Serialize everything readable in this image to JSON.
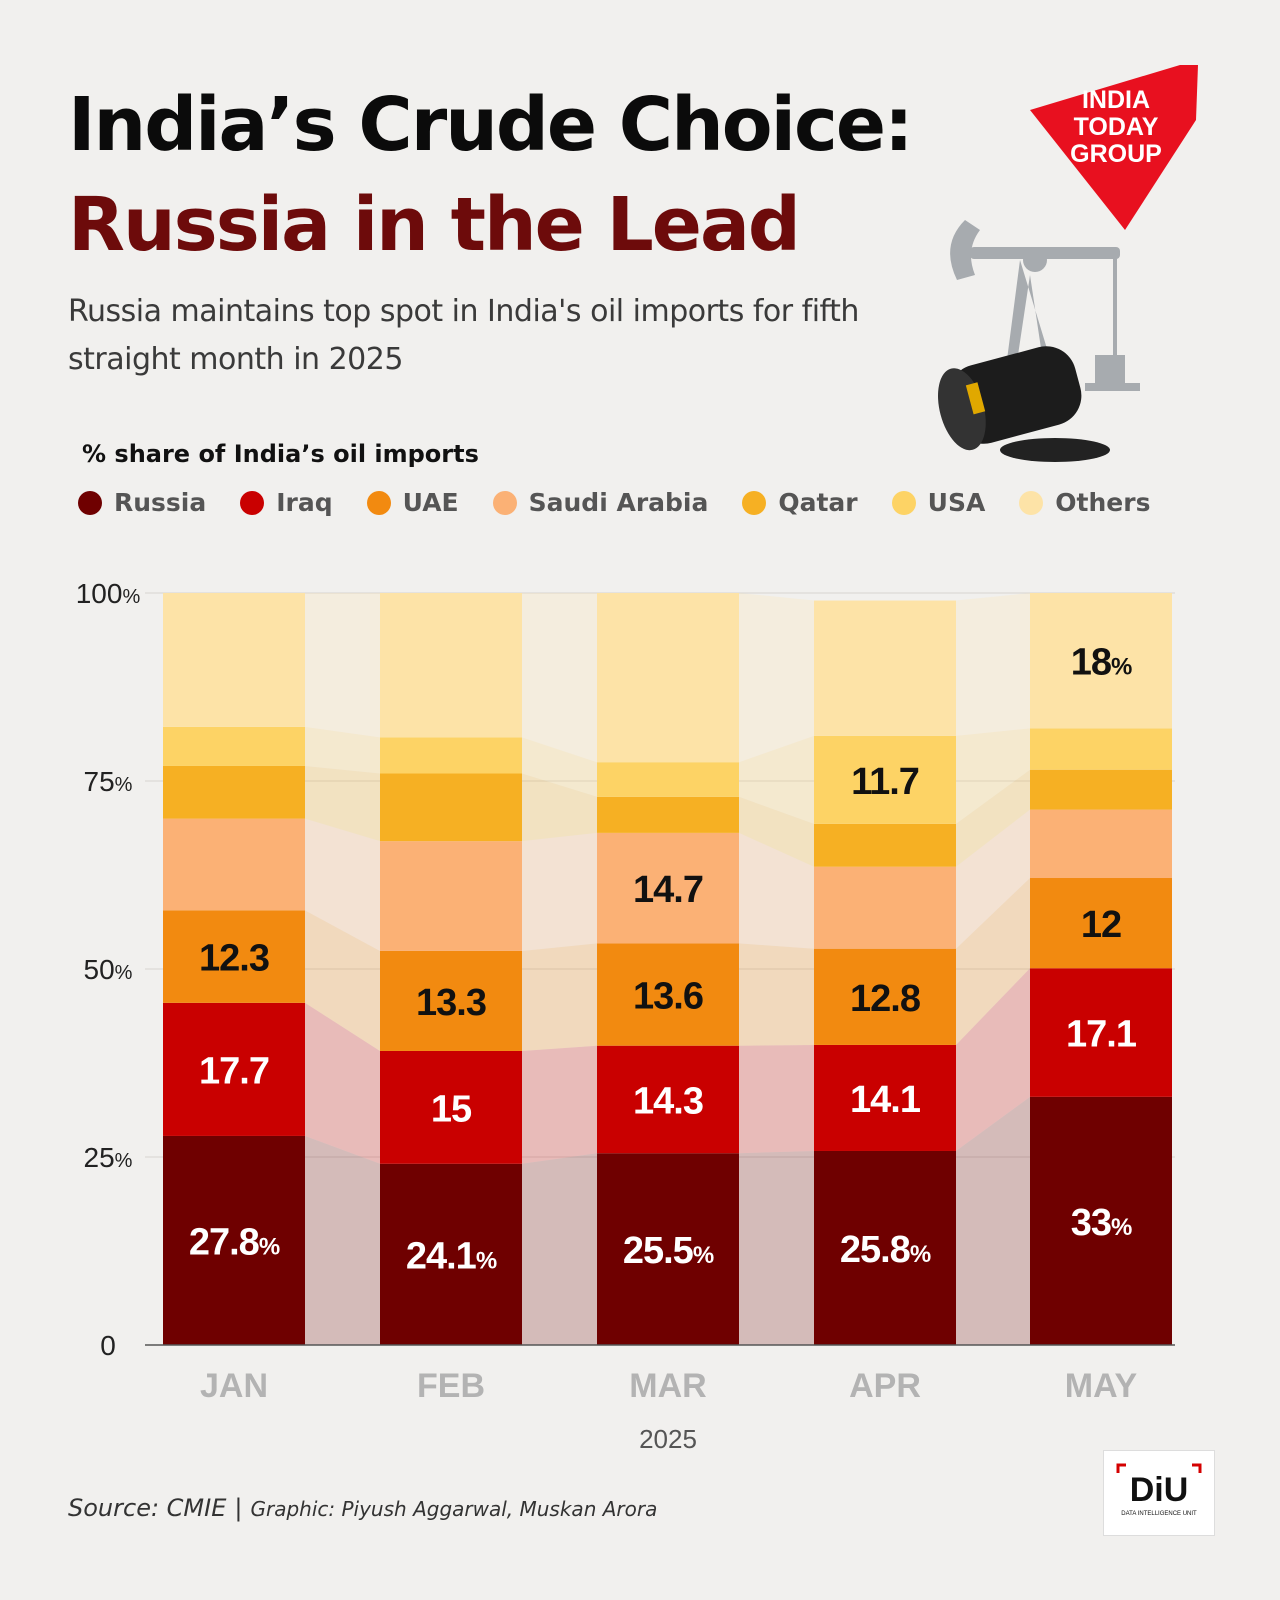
{
  "header": {
    "title_line1": "India’s Crude Choice:",
    "title_line2": "Russia in the Lead",
    "subtitle": "Russia maintains top spot in India's oil imports for fifth straight month in 2025",
    "chart_label": "% share of India’s oil imports"
  },
  "logo": {
    "line1": "INDIA",
    "line2": "TODAY",
    "line3": "GROUP"
  },
  "footer": {
    "source": "Source: CMIE",
    "separator": "|",
    "graphic": "Graphic: Piyush Aggarwal,  Muskan Arora"
  },
  "diu_badge": {
    "text": "DiU",
    "tagline": "DATA INTELLIGENCE UNIT"
  },
  "legend": [
    {
      "name": "Russia",
      "color": "#6f0000"
    },
    {
      "name": "Iraq",
      "color": "#c90000"
    },
    {
      "name": "UAE",
      "color": "#f28a10"
    },
    {
      "name": "Saudi Arabia",
      "color": "#fbb175"
    },
    {
      "name": "Qatar",
      "color": "#f6b023"
    },
    {
      "name": "USA",
      "color": "#fdd365"
    },
    {
      "name": "Others",
      "color": "#fde3a7"
    }
  ],
  "chart_data": {
    "type": "bar",
    "stacked": true,
    "categories": [
      "JAN",
      "FEB",
      "MAR",
      "APR",
      "MAY"
    ],
    "xlabel": "2025",
    "ylim": [
      0,
      100
    ],
    "y_ticks": [
      {
        "value": 0,
        "label": "0",
        "suffix": ""
      },
      {
        "value": 25,
        "label": "25",
        "suffix": "%"
      },
      {
        "value": 50,
        "label": "50",
        "suffix": "%"
      },
      {
        "value": 75,
        "label": "75",
        "suffix": "%"
      },
      {
        "value": 100,
        "label": "100",
        "suffix": "%"
      }
    ],
    "series": [
      {
        "name": "Russia",
        "color": "#6f0000",
        "label_color": "#ffffff",
        "values": [
          27.8,
          24.1,
          25.5,
          25.8,
          33
        ],
        "labels": [
          {
            "num": "27.8",
            "unit": "%"
          },
          {
            "num": "24.1",
            "unit": "%"
          },
          {
            "num": "25.5",
            "unit": "%"
          },
          {
            "num": "25.8",
            "unit": "%"
          },
          {
            "num": "33",
            "unit": "%"
          }
        ]
      },
      {
        "name": "Iraq",
        "color": "#c90000",
        "label_color": "#ffffff",
        "values": [
          17.7,
          15,
          14.3,
          14.1,
          17.1
        ],
        "labels": [
          {
            "num": "17.7",
            "unit": ""
          },
          {
            "num": "15",
            "unit": ""
          },
          {
            "num": "14.3",
            "unit": ""
          },
          {
            "num": "14.1",
            "unit": ""
          },
          {
            "num": "17.1",
            "unit": ""
          }
        ]
      },
      {
        "name": "UAE",
        "color": "#f28a10",
        "label_color": "#111111",
        "values": [
          12.3,
          13.3,
          13.6,
          12.8,
          12
        ],
        "labels": [
          {
            "num": "12.3",
            "unit": ""
          },
          {
            "num": "13.3",
            "unit": ""
          },
          {
            "num": "13.6",
            "unit": ""
          },
          {
            "num": "12.8",
            "unit": ""
          },
          {
            "num": "12",
            "unit": ""
          }
        ]
      },
      {
        "name": "Saudi Arabia",
        "color": "#fbb175",
        "label_color": "#111111",
        "values": [
          12.2,
          14.6,
          14.7,
          10.9,
          9.1
        ],
        "labels": [
          null,
          null,
          {
            "num": "14.7",
            "unit": ""
          },
          null,
          null
        ]
      },
      {
        "name": "Qatar",
        "color": "#f6b023",
        "label_color": "#111111",
        "values": [
          7,
          9,
          4.8,
          5.7,
          5.3
        ],
        "labels": [
          null,
          null,
          null,
          null,
          null
        ]
      },
      {
        "name": "USA",
        "color": "#fdd365",
        "label_color": "#111111",
        "values": [
          5.2,
          4.8,
          4.6,
          11.7,
          5.5
        ],
        "labels": [
          null,
          null,
          null,
          {
            "num": "11.7",
            "unit": ""
          },
          null
        ]
      },
      {
        "name": "Others",
        "color": "#fde3a7",
        "label_color": "#111111",
        "values": [
          17.8,
          19.2,
          22.5,
          18,
          18
        ],
        "labels": [
          null,
          null,
          null,
          null,
          {
            "num": "18",
            "unit": "%"
          }
        ]
      }
    ]
  }
}
